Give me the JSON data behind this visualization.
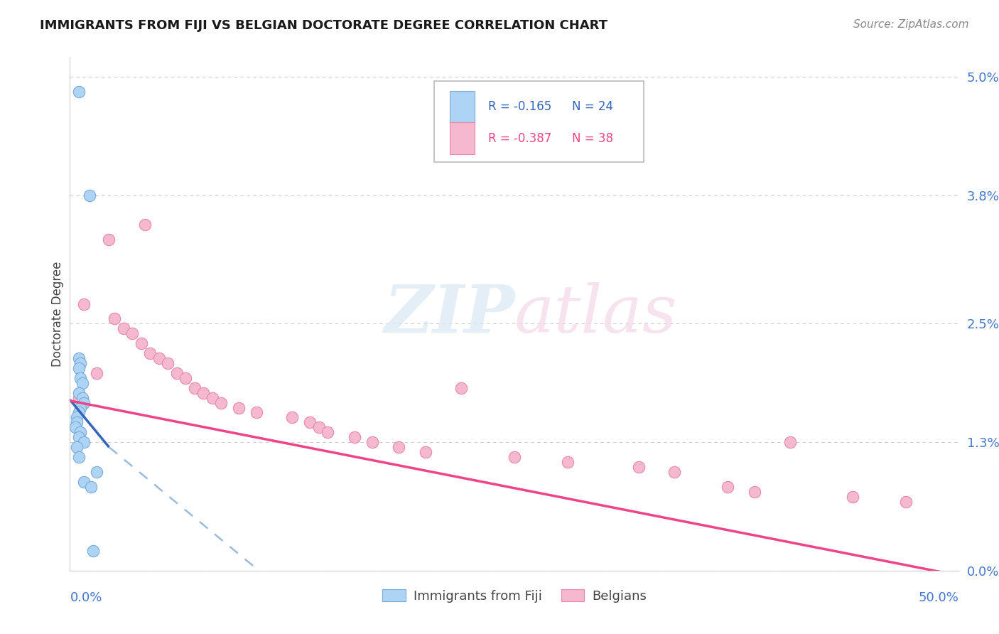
{
  "title": "IMMIGRANTS FROM FIJI VS BELGIAN DOCTORATE DEGREE CORRELATION CHART",
  "source": "Source: ZipAtlas.com",
  "ylabel": "Doctorate Degree",
  "x_lim": [
    0.0,
    50.0
  ],
  "y_lim": [
    0.0,
    5.2
  ],
  "y_ticks": [
    0.0,
    1.3,
    2.5,
    3.8,
    5.0
  ],
  "fiji_r": "-0.165",
  "fiji_n": "24",
  "belgian_r": "-0.387",
  "belgian_n": "38",
  "fiji_color": "#add4f5",
  "belgian_color": "#f5b8cf",
  "fiji_edge": "#7aaad8",
  "belgian_edge": "#e888aa",
  "trend_blue": "#3366bb",
  "trend_pink": "#ee4488",
  "trend_blue_dash": "#99bbdd",
  "fiji_x": [
    0.5,
    0.5,
    0.6,
    0.5,
    0.6,
    0.7,
    0.5,
    0.7,
    0.8,
    0.6,
    0.5,
    0.4,
    0.4,
    0.3,
    0.6,
    0.5,
    0.8,
    0.4,
    0.5,
    0.8,
    1.2,
    1.5,
    1.1,
    1.3
  ],
  "fiji_y": [
    4.85,
    2.15,
    2.1,
    2.05,
    1.95,
    1.9,
    1.8,
    1.75,
    1.7,
    1.65,
    1.6,
    1.55,
    1.5,
    1.45,
    1.4,
    1.35,
    1.3,
    1.25,
    1.15,
    0.9,
    0.85,
    1.0,
    3.8,
    0.2
  ],
  "belgian_x": [
    0.5,
    1.5,
    0.8,
    2.2,
    2.5,
    3.0,
    3.5,
    4.0,
    4.2,
    4.5,
    5.0,
    5.5,
    6.0,
    6.5,
    7.0,
    7.5,
    8.0,
    8.5,
    9.5,
    10.5,
    12.5,
    13.5,
    14.0,
    14.5,
    16.0,
    17.0,
    18.5,
    20.0,
    22.0,
    25.0,
    28.0,
    32.0,
    34.0,
    37.0,
    38.5,
    40.5,
    44.0,
    47.0
  ],
  "belgian_y": [
    1.75,
    2.0,
    2.7,
    3.35,
    2.55,
    2.45,
    2.4,
    2.3,
    3.5,
    2.2,
    2.15,
    2.1,
    2.0,
    1.95,
    1.85,
    1.8,
    1.75,
    1.7,
    1.65,
    1.6,
    1.55,
    1.5,
    1.45,
    1.4,
    1.35,
    1.3,
    1.25,
    1.2,
    1.85,
    1.15,
    1.1,
    1.05,
    1.0,
    0.85,
    0.8,
    1.3,
    0.75,
    0.7
  ],
  "watermark_line1": "ZIP",
  "watermark_line2": "atlas",
  "title_color": "#1a1a1a",
  "axis_label_color": "#4477cc",
  "grid_color": "#cccccc",
  "fiji_trend_x_start": 0.0,
  "fiji_trend_x_solid_end": 2.2,
  "fiji_trend_x_dash_end": 14.0,
  "belgian_trend_x_start": 0.0,
  "belgian_trend_x_end": 50.0,
  "fiji_trend_y_start": 1.73,
  "fiji_trend_y_solid_end": 1.25,
  "fiji_trend_y_dash_end": -0.5,
  "belgian_trend_y_start": 1.72,
  "belgian_trend_y_end": -0.05
}
